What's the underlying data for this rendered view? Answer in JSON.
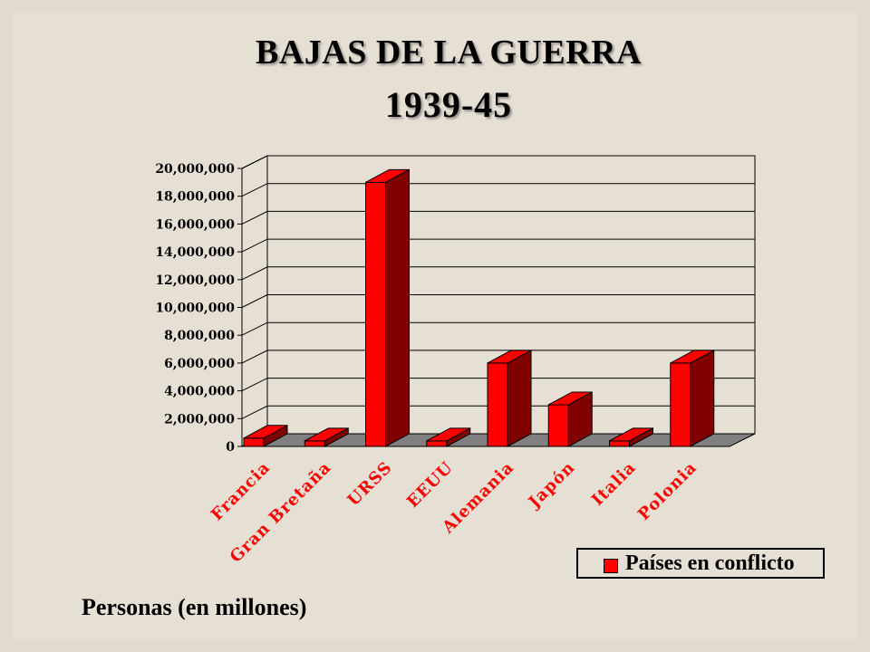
{
  "title_line1": "BAJAS DE LA GUERRA",
  "title_line2": "1939-45",
  "caption": "Personas (en millones)",
  "colors": {
    "bar_front": "#ff0000",
    "bar_side": "#800000",
    "label": "#ff0000"
  },
  "chart_data": {
    "type": "bar",
    "categories": [
      "Francia",
      "Gran Bretaña",
      "URSS",
      "EEUU",
      "Alemania",
      "Japón",
      "Italia",
      "Polonia"
    ],
    "series": [
      {
        "name": "Países en conflicto",
        "values": [
          600000,
          400000,
          19000000,
          400000,
          6000000,
          3000000,
          400000,
          6000000
        ]
      }
    ],
    "ylim": [
      0,
      20000000
    ],
    "yticks": [
      "0",
      "2,000,000",
      "4,000,000",
      "6,000,000",
      "8,000,000",
      "10,000,000",
      "12,000,000",
      "14,000,000",
      "16,000,000",
      "18,000,000",
      "20,000,000"
    ],
    "grid": true,
    "legend_position": "bottom-right",
    "three_d": true
  }
}
